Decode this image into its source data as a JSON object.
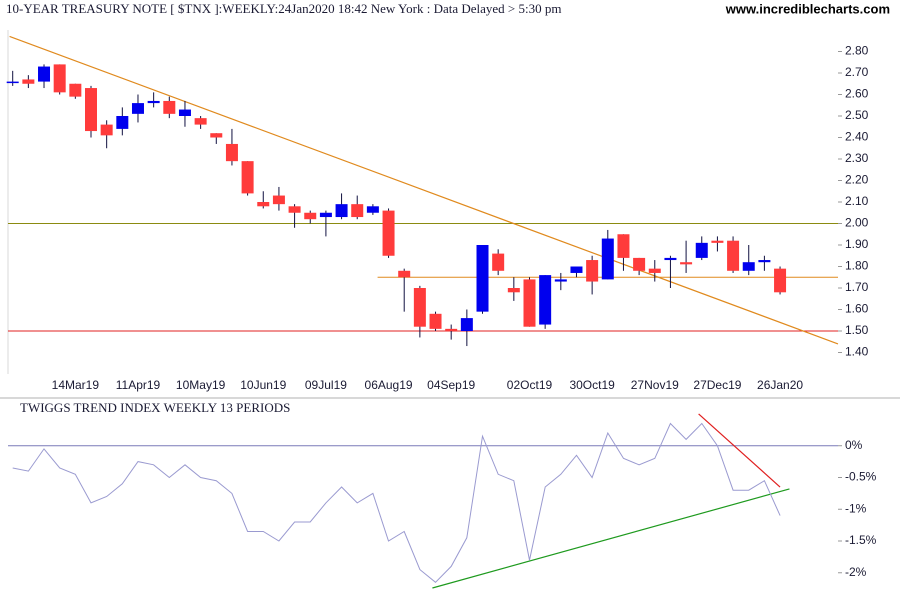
{
  "chart_data": [
    {
      "type": "candlestick",
      "title": "10-YEAR TREASURY NOTE [ $TNX ]:WEEKLY:24Jan2020 18:42 New York : Data Delayed > 5:30 pm",
      "subtitle": "www.incrediblecharts.com",
      "categories": [
        null,
        null,
        null,
        null,
        "14Mar19",
        null,
        null,
        null,
        "11Apr19",
        null,
        null,
        null,
        "10May19",
        null,
        null,
        null,
        "10Jun19",
        null,
        null,
        null,
        "09Jul19",
        null,
        null,
        null,
        "06Aug19",
        null,
        null,
        null,
        "04Sep19",
        null,
        null,
        null,
        null,
        "02Oct19",
        null,
        null,
        null,
        "30Oct19",
        null,
        null,
        null,
        "27Nov19",
        null,
        null,
        null,
        "27Dec19",
        null,
        null,
        null,
        "26Jan20"
      ],
      "open": [
        2.66,
        2.67,
        2.66,
        2.74,
        2.65,
        2.63,
        2.46,
        2.44,
        2.51,
        2.56,
        2.57,
        2.5,
        2.49,
        2.42,
        2.37,
        2.29,
        2.1,
        2.13,
        2.08,
        2.05,
        2.03,
        2.03,
        2.09,
        2.05,
        2.06,
        1.78,
        1.7,
        1.58,
        1.51,
        1.5,
        1.59,
        1.86,
        1.7,
        1.74,
        1.53,
        1.73,
        1.77,
        1.83,
        1.74,
        1.95,
        1.84,
        1.79,
        1.83,
        1.82,
        1.84,
        1.92,
        1.92,
        1.78,
        1.82,
        1.79
      ],
      "high": [
        2.71,
        2.69,
        2.74,
        2.74,
        2.65,
        2.64,
        2.48,
        2.54,
        2.6,
        2.61,
        2.59,
        2.57,
        2.5,
        2.42,
        2.44,
        2.29,
        2.15,
        2.17,
        2.09,
        2.06,
        2.06,
        2.14,
        2.13,
        2.09,
        2.07,
        1.79,
        1.71,
        1.59,
        1.53,
        1.6,
        1.9,
        1.88,
        1.75,
        1.75,
        1.76,
        1.77,
        1.8,
        1.85,
        1.97,
        1.95,
        1.84,
        1.83,
        1.85,
        1.92,
        1.94,
        1.94,
        1.94,
        1.9,
        1.85,
        1.8
      ],
      "low": [
        2.64,
        2.63,
        2.63,
        2.6,
        2.58,
        2.4,
        2.35,
        2.41,
        2.47,
        2.54,
        2.49,
        2.45,
        2.44,
        2.37,
        2.27,
        2.13,
        2.07,
        2.06,
        1.98,
        2.0,
        1.94,
        2.02,
        2.02,
        2.04,
        1.84,
        1.59,
        1.47,
        1.5,
        1.46,
        1.43,
        1.58,
        1.76,
        1.64,
        1.52,
        1.51,
        1.69,
        1.75,
        1.67,
        1.74,
        1.78,
        1.76,
        1.73,
        1.7,
        1.77,
        1.83,
        1.87,
        1.77,
        1.76,
        1.78,
        1.67
      ],
      "close": [
        2.66,
        2.65,
        2.73,
        2.61,
        2.59,
        2.43,
        2.41,
        2.5,
        2.56,
        2.57,
        2.51,
        2.53,
        2.46,
        2.4,
        2.29,
        2.14,
        2.08,
        2.09,
        2.05,
        2.02,
        2.05,
        2.09,
        2.03,
        2.08,
        1.85,
        1.75,
        1.52,
        1.51,
        1.5,
        1.56,
        1.9,
        1.78,
        1.68,
        1.52,
        1.76,
        1.74,
        1.8,
        1.73,
        1.93,
        1.84,
        1.78,
        1.77,
        1.84,
        1.81,
        1.91,
        1.91,
        1.78,
        1.82,
        1.83,
        1.68
      ],
      "up_color": "#0000ee",
      "down_color": "#ff3b3b",
      "wick_color": "#101040",
      "xlim": [
        -0.3,
        52.7
      ],
      "ylim": [
        1.3,
        2.9
      ],
      "yticks": [
        {
          "value": 1.4,
          "label": "1.40"
        },
        {
          "value": 1.5,
          "label": "1.50"
        },
        {
          "value": 1.6,
          "label": "1.60"
        },
        {
          "value": 1.7,
          "label": "1.70"
        },
        {
          "value": 1.8,
          "label": "1.80"
        },
        {
          "value": 1.9,
          "label": "1.90"
        },
        {
          "value": 2.0,
          "label": "2.00"
        },
        {
          "value": 2.1,
          "label": "2.10"
        },
        {
          "value": 2.2,
          "label": "2.20"
        },
        {
          "value": 2.3,
          "label": "2.30"
        },
        {
          "value": 2.4,
          "label": "2.40"
        },
        {
          "value": 2.5,
          "label": "2.50"
        },
        {
          "value": 2.6,
          "label": "2.60"
        },
        {
          "value": 2.7,
          "label": "2.70"
        },
        {
          "value": 2.8,
          "label": "2.80"
        }
      ],
      "lines": [
        {
          "value": 2.0,
          "color": "#8b8b10"
        },
        {
          "value": 1.75,
          "color": "#e08a1e",
          "from": 23.3
        },
        {
          "value": 1.5,
          "color": "#e02020"
        }
      ],
      "trendlines": [
        {
          "x": [
            -0.2,
            52.7
          ],
          "y": [
            2.87,
            1.44
          ],
          "color": "#e08a1e"
        }
      ]
    },
    {
      "type": "line",
      "title": "TWIGGS TREND INDEX WEEKLY 13 PERIODS",
      "values": [
        -0.35,
        -0.4,
        -0.05,
        -0.35,
        -0.45,
        -0.9,
        -0.8,
        -0.6,
        -0.25,
        -0.3,
        -0.5,
        -0.3,
        -0.5,
        -0.55,
        -0.75,
        -1.35,
        -1.35,
        -1.5,
        -1.2,
        -1.2,
        -0.9,
        -0.65,
        -0.9,
        -0.75,
        -1.5,
        -1.35,
        -1.95,
        -2.15,
        -1.9,
        -1.45,
        0.15,
        -0.45,
        -0.55,
        -1.8,
        -0.65,
        -0.45,
        -0.15,
        -0.5,
        0.2,
        -0.2,
        -0.3,
        -0.2,
        0.35,
        0.1,
        0.35,
        0.0,
        -0.7,
        -0.7,
        -0.55,
        -1.1
      ],
      "color": "#9a9ad0",
      "xlim": [
        -0.3,
        52.7
      ],
      "ylim": [
        -2.35,
        0.72
      ],
      "yticks": [
        {
          "value": 0,
          "label": "0%"
        },
        {
          "value": -0.5,
          "label": "-0.5%"
        },
        {
          "value": -1,
          "label": "-1%"
        },
        {
          "value": -1.5,
          "label": "-1.5%"
        },
        {
          "value": -2,
          "label": "-2%"
        }
      ],
      "lines": [
        {
          "value": 0,
          "color": "#7a7ab8"
        }
      ],
      "trendlines": [
        {
          "x": [
            26.8,
            49.6
          ],
          "y": [
            -2.24,
            -0.68
          ],
          "color": "#1e9a1e"
        },
        {
          "x": [
            43.8,
            49.0
          ],
          "y": [
            0.5,
            -0.65
          ],
          "color": "#e02020"
        }
      ]
    }
  ]
}
